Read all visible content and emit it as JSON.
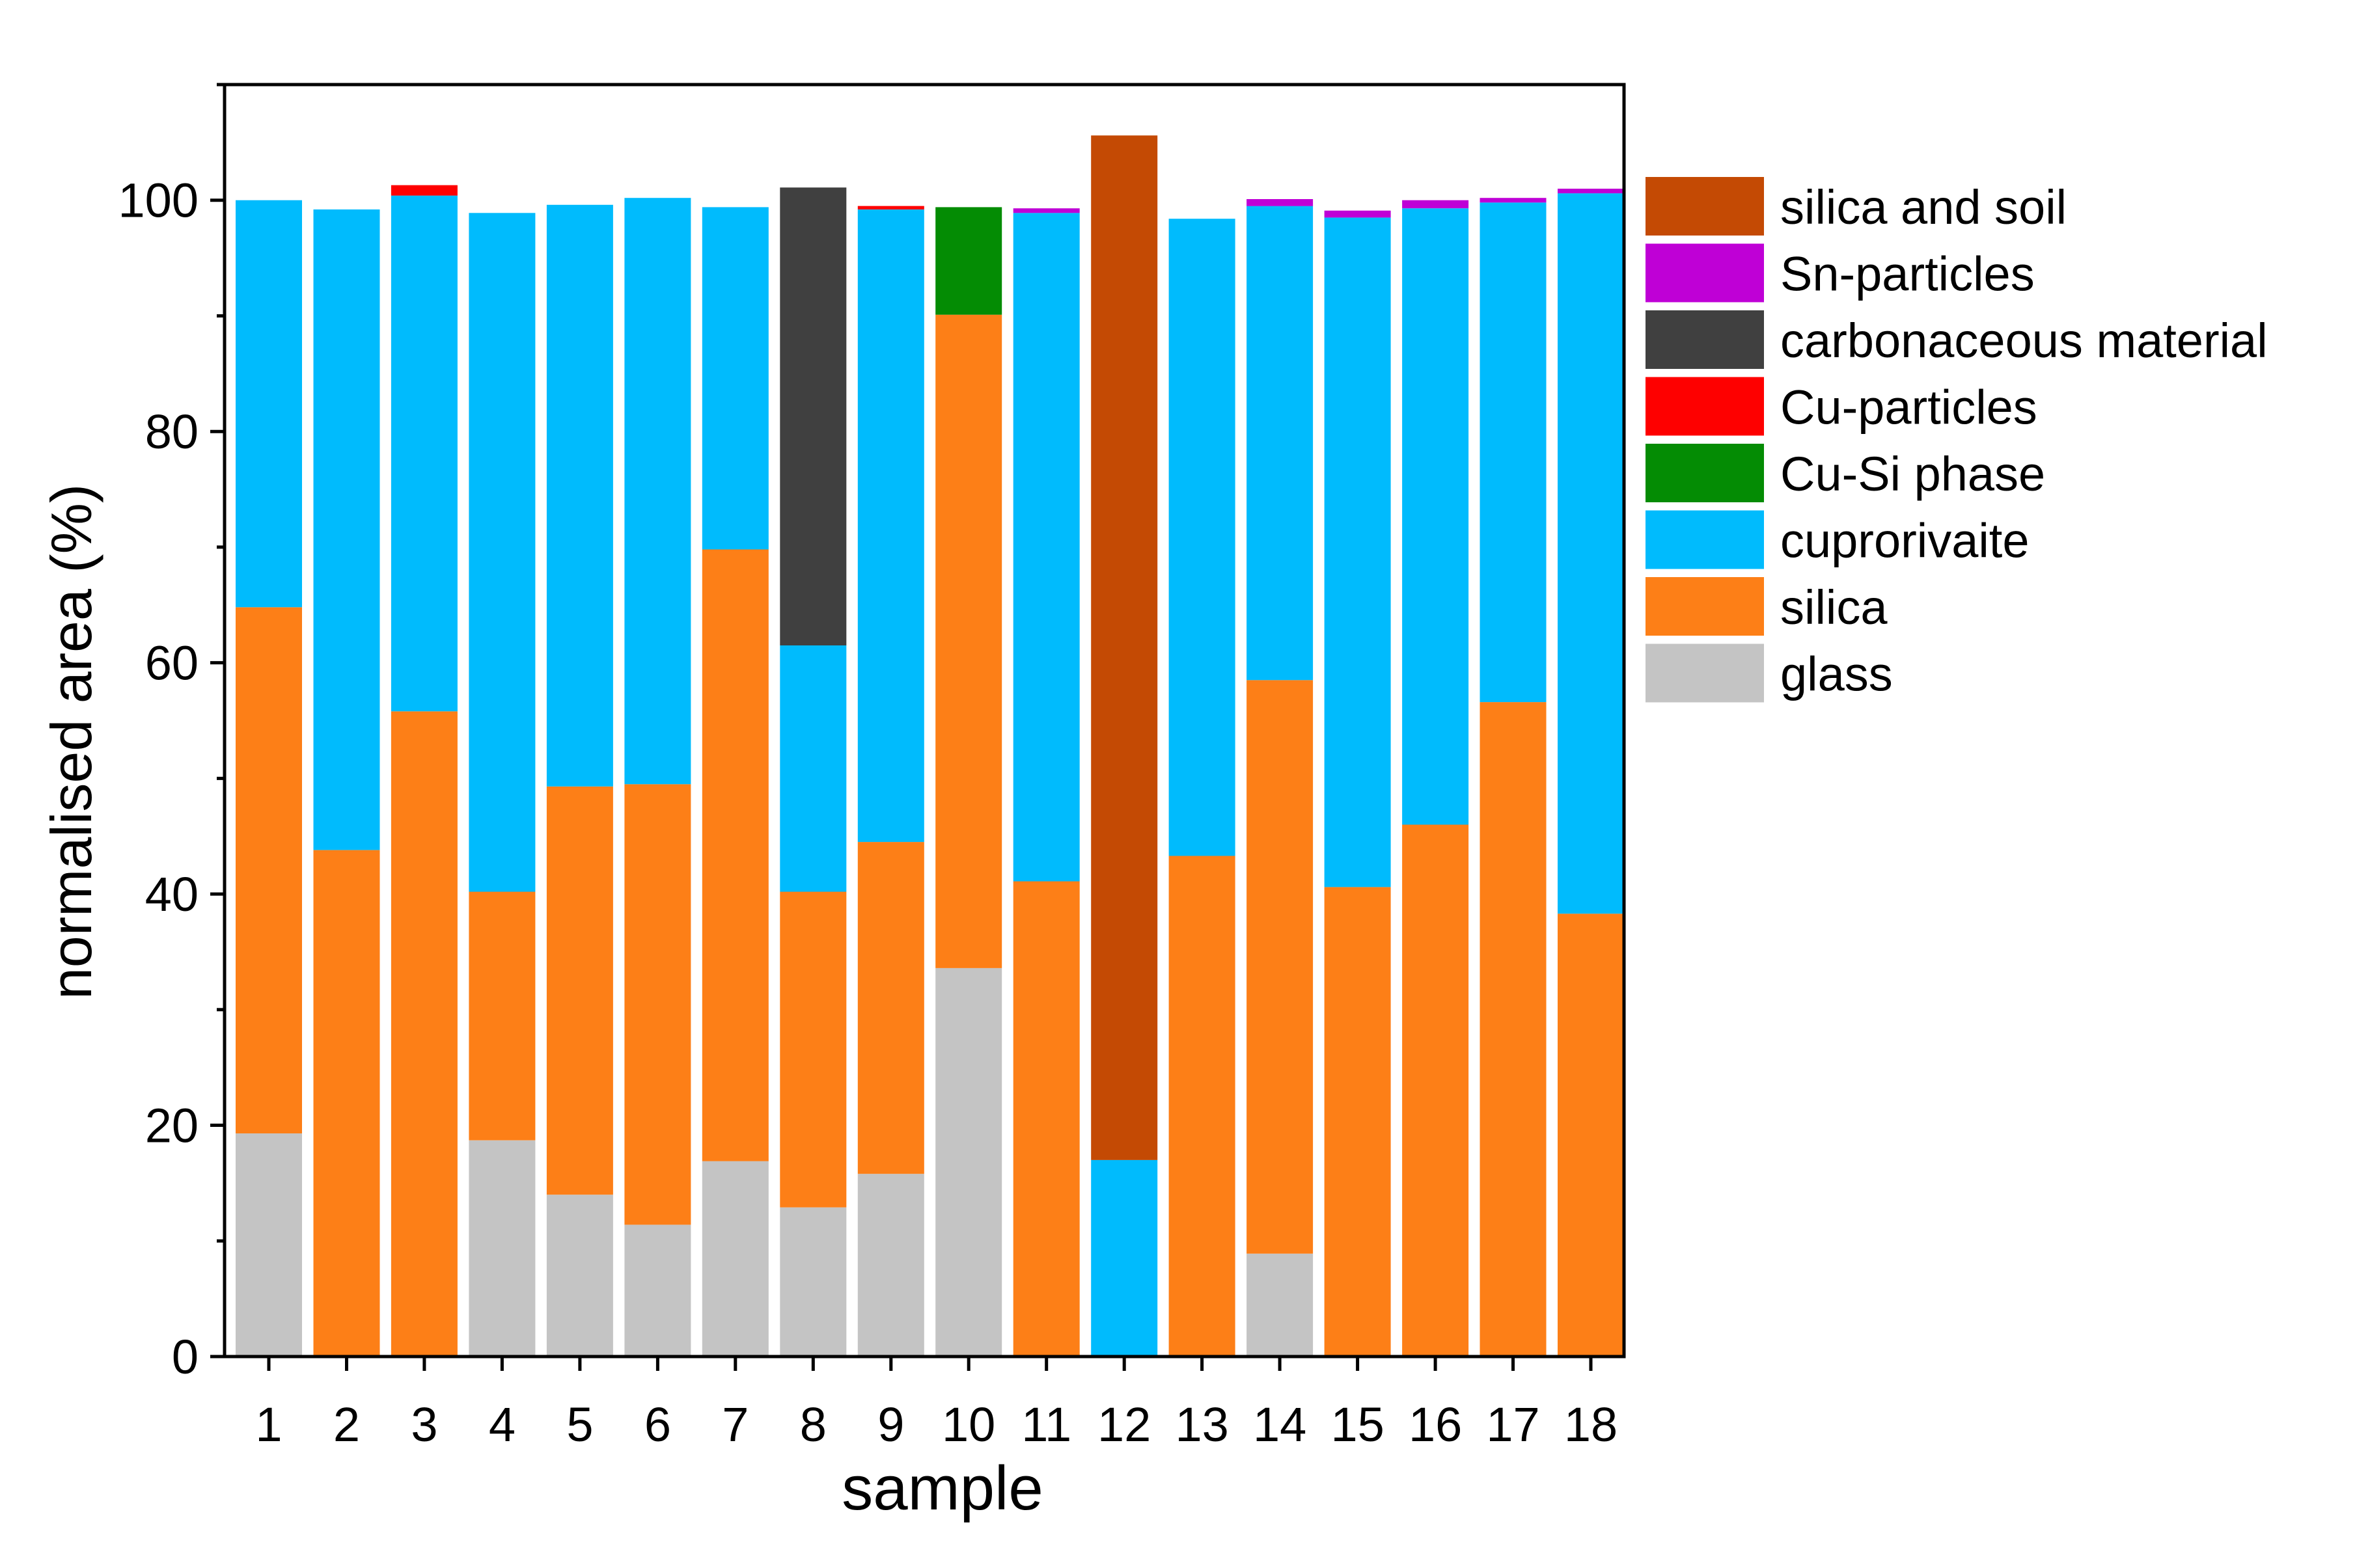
{
  "chart_data": {
    "type": "bar",
    "stacked": true,
    "title": "",
    "xlabel": "sample",
    "ylabel": "normalised area (%)",
    "ylim": [
      0,
      110
    ],
    "yticks": [
      0,
      20,
      40,
      60,
      80,
      100
    ],
    "categories": [
      "1",
      "2",
      "3",
      "4",
      "5",
      "6",
      "7",
      "8",
      "9",
      "10",
      "11",
      "12",
      "13",
      "14",
      "15",
      "16",
      "17",
      "18"
    ],
    "legend_position": "right",
    "legend_order": [
      "silica and soil",
      "Sn-particles",
      "carbonaceous material",
      "Cu-particles",
      "Cu-Si phase",
      "cuprorivaite",
      "silica",
      "glass"
    ],
    "series": [
      {
        "name": "glass",
        "color": "#c4c4c4",
        "values": [
          19.3,
          0,
          0,
          18.7,
          14.0,
          11.4,
          16.9,
          12.9,
          15.8,
          33.6,
          0,
          0,
          0,
          8.9,
          0,
          0,
          0,
          0
        ]
      },
      {
        "name": "silica",
        "color": "#fd7f17",
        "values": [
          45.5,
          43.8,
          55.8,
          21.5,
          35.3,
          38.1,
          52.9,
          27.3,
          28.7,
          56.5,
          41.1,
          0,
          43.3,
          49.6,
          40.6,
          46.0,
          56.6,
          38.3
        ]
      },
      {
        "name": "cuprorivaite",
        "color": "#00bbfd",
        "values": [
          35.2,
          55.4,
          44.6,
          58.7,
          50.3,
          50.7,
          29.6,
          21.3,
          54.7,
          0,
          57.8,
          17.0,
          55.1,
          41.0,
          57.9,
          53.3,
          43.2,
          62.3
        ]
      },
      {
        "name": "Cu-Si phase",
        "color": "#048c04",
        "values": [
          0,
          0,
          0,
          0,
          0,
          0,
          0,
          0,
          0,
          9.3,
          0,
          0,
          0,
          0,
          0,
          0,
          0,
          0
        ]
      },
      {
        "name": "Cu-particles",
        "color": "#fe0000",
        "values": [
          0,
          0,
          0.9,
          0,
          0,
          0,
          0,
          0,
          0.3,
          0,
          0,
          0,
          0,
          0,
          0,
          0,
          0,
          0
        ]
      },
      {
        "name": "carbonaceous material",
        "color": "#404040",
        "values": [
          0,
          0,
          0,
          0,
          0,
          0,
          0,
          39.6,
          0,
          0,
          0,
          0,
          0,
          0,
          0,
          0,
          0,
          0
        ]
      },
      {
        "name": "Sn-particles",
        "color": "#bf00d6",
        "values": [
          0,
          0,
          0,
          0,
          0,
          0,
          0,
          0,
          0,
          0,
          0.4,
          0,
          0,
          0.6,
          0.6,
          0.7,
          0.4,
          0.4
        ]
      },
      {
        "name": "silica and soil",
        "color": "#c44a04",
        "values": [
          0,
          0,
          0,
          0,
          0,
          0,
          0,
          0,
          0,
          0,
          0,
          88.6,
          0,
          0,
          0,
          0,
          0,
          0
        ]
      }
    ]
  }
}
